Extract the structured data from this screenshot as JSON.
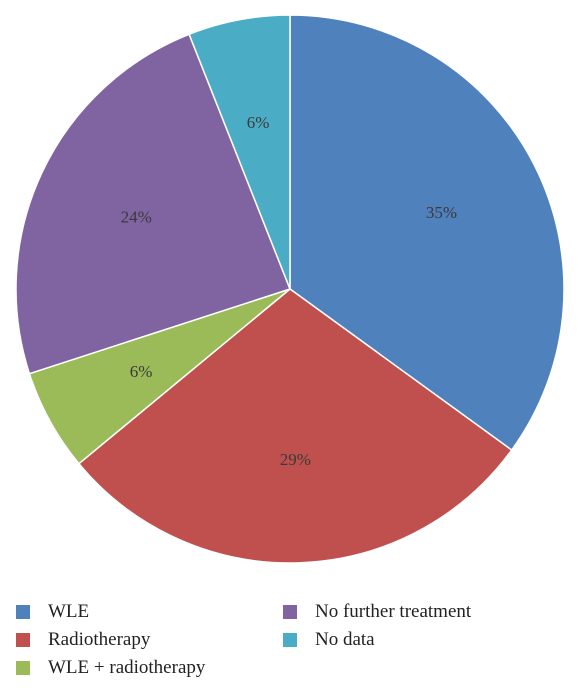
{
  "chart_data": {
    "type": "pie",
    "slices": [
      {
        "name": "WLE",
        "value": 35,
        "label": "35%",
        "color": "#4f81bd"
      },
      {
        "name": "Radiotherapy",
        "value": 29,
        "label": "29%",
        "color": "#c0504d"
      },
      {
        "name": "WLE + radiotherapy",
        "value": 6,
        "label": "6%",
        "color": "#9bbb59"
      },
      {
        "name": "No further treatment",
        "value": 24,
        "label": "24%",
        "color": "#8064a2"
      },
      {
        "name": "No data",
        "value": 6,
        "label": "6%",
        "color": "#4bacc6"
      }
    ],
    "legend_position": "bottom",
    "start_angle": "12 o'clock, clockwise"
  }
}
